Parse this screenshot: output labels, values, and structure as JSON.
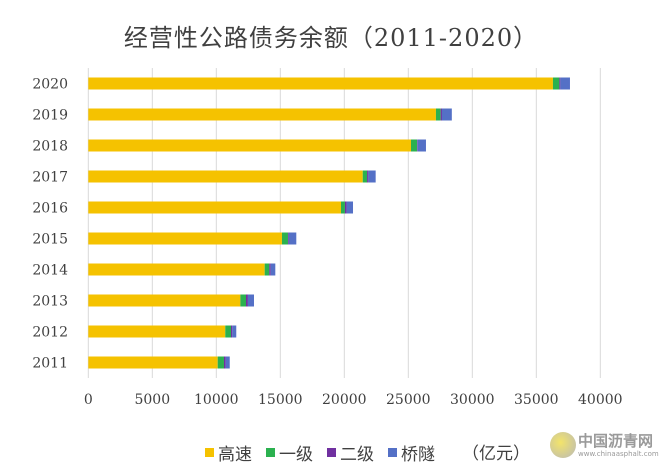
{
  "chart_data": {
    "type": "bar",
    "orientation": "horizontal",
    "stacked": true,
    "title": "经营性公路债务余额（2011-2020）",
    "unit": "（亿元）",
    "categories": [
      "2011",
      "2012",
      "2013",
      "2014",
      "2015",
      "2016",
      "2017",
      "2018",
      "2019",
      "2020"
    ],
    "series": [
      {
        "name": "高速",
        "color": "#F5C200",
        "values": [
          10110,
          10700,
          11880,
          13780,
          15130,
          19740,
          21440,
          25210,
          27160,
          36300
        ]
      },
      {
        "name": "一级",
        "color": "#2BB14F",
        "values": [
          490,
          450,
          440,
          360,
          470,
          310,
          340,
          480,
          370,
          500
        ]
      },
      {
        "name": "二级",
        "color": "#7030A0",
        "values": [
          130,
          100,
          150,
          110,
          60,
          130,
          100,
          40,
          100,
          80
        ]
      },
      {
        "name": "桥隧",
        "color": "#5470C6",
        "values": [
          320,
          310,
          475,
          360,
          590,
          500,
          570,
          650,
          770,
          750
        ]
      }
    ],
    "xlim": [
      0,
      40000
    ],
    "xticks": [
      "0",
      "5000",
      "10000",
      "15000",
      "20000",
      "25000",
      "30000",
      "35000",
      "40000"
    ],
    "grid": true,
    "legend": "bottom"
  },
  "watermark": {
    "logo_text": "中国沥青网",
    "logo_url_text": "www.chinaasphalt.com"
  }
}
